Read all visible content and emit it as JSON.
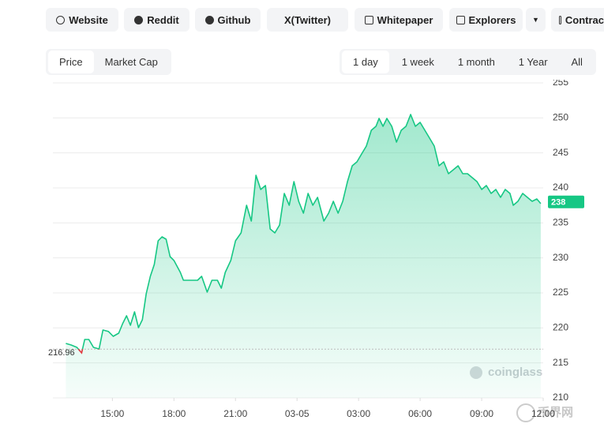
{
  "links": [
    "Website",
    "Reddit",
    "Github",
    "X(Twitter)",
    "Whitepaper",
    "Explorers",
    "Contrac"
  ],
  "tabs": [
    "Price",
    "Market Cap"
  ],
  "ranges": [
    "1 day",
    "1 week",
    "1 month",
    "1 Year",
    "All"
  ],
  "watermark": "coinglass",
  "corner_mark": "币界网",
  "chart_data": {
    "type": "line",
    "color": "#16c784",
    "below_color": "#ea3943",
    "grid": true,
    "x": [
      12.73,
      12.99,
      13.27,
      13.5,
      13.65,
      13.85,
      14.08,
      14.35,
      14.54,
      14.81,
      15.04,
      15.31,
      15.5,
      15.69,
      15.88,
      16.08,
      16.27,
      16.46,
      16.65,
      16.85,
      17.04,
      17.23,
      17.42,
      17.62,
      17.81,
      18.0,
      18.31,
      18.46,
      18.77,
      19.15,
      19.35,
      19.62,
      19.85,
      20.12,
      20.31,
      20.5,
      20.77,
      21.0,
      21.27,
      21.54,
      21.77,
      22.0,
      22.23,
      22.46,
      22.69,
      22.92,
      23.15,
      23.38,
      23.62,
      23.85,
      24.08,
      24.31,
      24.54,
      24.77,
      25.0,
      25.31,
      25.54,
      25.77,
      26.0,
      26.23,
      26.46,
      26.69,
      26.92,
      27.15,
      27.38,
      27.62,
      27.85,
      28.0,
      28.19,
      28.38,
      28.62,
      28.85,
      29.08,
      29.31,
      29.54,
      29.77,
      30.0,
      30.23,
      30.46,
      30.69,
      30.92,
      31.15,
      31.38,
      31.62,
      31.85,
      32.08,
      32.31,
      32.54,
      32.77,
      33.0,
      33.23,
      33.46,
      33.69,
      33.92,
      34.15,
      34.38,
      34.54,
      34.77,
      35.0,
      35.23,
      35.46,
      35.69,
      35.88
    ],
    "values": [
      217.78,
      217.56,
      217.22,
      216.43,
      218.35,
      218.35,
      217.22,
      216.99,
      219.7,
      219.48,
      218.8,
      219.25,
      220.6,
      221.73,
      220.38,
      222.29,
      220.04,
      221.17,
      224.89,
      227.37,
      229.06,
      232.44,
      233.01,
      232.67,
      230.19,
      229.63,
      227.93,
      226.81,
      226.81,
      226.81,
      227.37,
      225.11,
      226.81,
      226.81,
      225.68,
      227.93,
      229.63,
      232.44,
      233.57,
      237.52,
      235.26,
      241.8,
      239.78,
      240.34,
      234.14,
      233.57,
      234.7,
      239.21,
      237.52,
      240.9,
      238.08,
      236.39,
      239.21,
      237.52,
      238.65,
      235.26,
      236.39,
      238.08,
      236.39,
      238.08,
      240.9,
      243.16,
      243.72,
      244.85,
      245.98,
      248.23,
      248.8,
      249.92,
      248.8,
      249.92,
      248.8,
      246.54,
      248.23,
      248.8,
      250.49,
      248.8,
      249.36,
      248.23,
      247.11,
      245.98,
      243.16,
      243.72,
      242.03,
      242.59,
      243.16,
      242.03,
      242.03,
      241.47,
      240.9,
      239.78,
      240.34,
      239.21,
      239.78,
      238.65,
      239.78,
      239.21,
      237.52,
      238.08,
      239.21,
      238.65,
      238.08,
      238.42,
      237.75
    ],
    "baseline": 216.96,
    "current_price": 238,
    "xlim": [
      12.1,
      36
    ],
    "xticks": [
      {
        "value": 15,
        "label": "15:00"
      },
      {
        "value": 18,
        "label": "18:00"
      },
      {
        "value": 21,
        "label": "21:00"
      },
      {
        "value": 24,
        "label": "03-05"
      },
      {
        "value": 27,
        "label": "03:00"
      },
      {
        "value": 30,
        "label": "06:00"
      },
      {
        "value": 33,
        "label": "09:00"
      },
      {
        "value": 36,
        "label": "12:00"
      }
    ],
    "ylim": [
      210,
      255
    ],
    "yticks": [
      210,
      215,
      220,
      225,
      230,
      235,
      240,
      245,
      250,
      255
    ]
  }
}
